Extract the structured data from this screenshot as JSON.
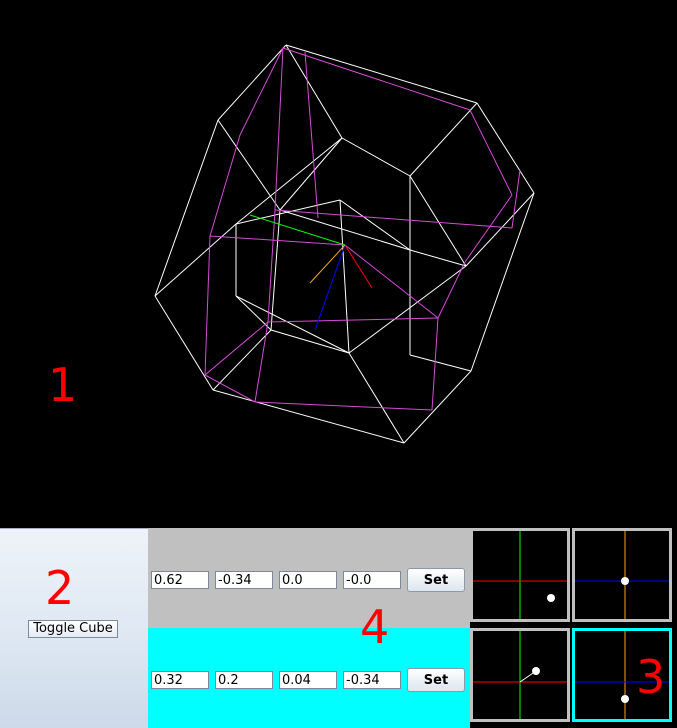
{
  "labels": {
    "viewport": "1",
    "controls": "2",
    "joysticks": "3",
    "values": "4"
  },
  "toggle_button": "Toggle Cube",
  "rows": [
    {
      "values": [
        "0.62",
        "-0.34",
        "0.0",
        "-0.0"
      ],
      "set_label": "Set",
      "background": "#c0c0c0"
    },
    {
      "values": [
        "0.32",
        "0.2",
        "0.04",
        "-0.34"
      ],
      "set_label": "Set",
      "background": "#00ffff"
    }
  ],
  "colors": {
    "wire_white": "#ffffff",
    "wire_magenta": "#d84ad8",
    "axis_x": "#ff0000",
    "axis_y": "#00ff00",
    "axis_z": "#0000ff",
    "axis_w": "#ffa500",
    "label_red": "#ff0000"
  }
}
